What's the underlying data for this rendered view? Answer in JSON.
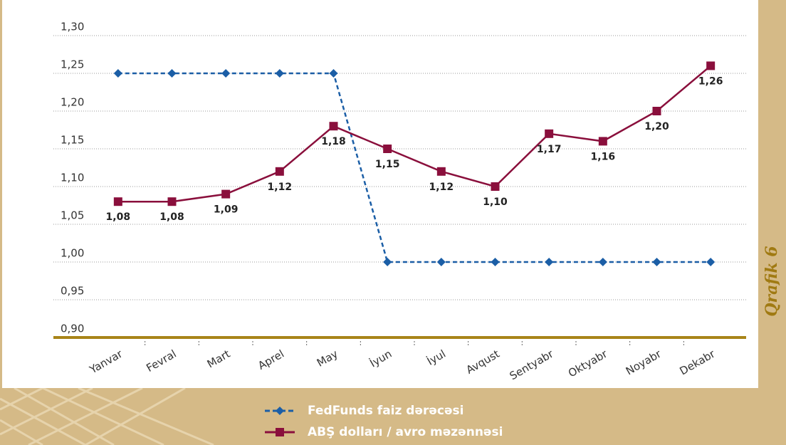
{
  "chart_data": {
    "type": "line",
    "figure_label": "Qrafik 6",
    "categories": [
      "Yanvar",
      "Fevral",
      "Mart",
      "Aprel",
      "May",
      "İyun",
      "İyul",
      "Avqust",
      "Sentyabr",
      "Oktyabr",
      "Noyabr",
      "Dekabr"
    ],
    "series": [
      {
        "name": "FedFunds faiz dərəcəsi",
        "color": "#1b5ea6",
        "line_style": "dashed",
        "marker": "diamond",
        "values": [
          1.25,
          1.25,
          1.25,
          1.25,
          1.25,
          1.0,
          1.0,
          1.0,
          1.0,
          1.0,
          1.0,
          1.0
        ]
      },
      {
        "name": "ABŞ dolları / avro məzənnəsi",
        "color": "#8a0f3c",
        "line_style": "solid",
        "marker": "square",
        "values": [
          1.08,
          1.08,
          1.09,
          1.12,
          1.18,
          1.15,
          1.12,
          1.1,
          1.17,
          1.16,
          1.2,
          1.26
        ],
        "value_labels": [
          "1,08",
          "1,08",
          "1,09",
          "1,12",
          "1,18",
          "1,15",
          "1,12",
          "1,10",
          "1,17",
          "1,16",
          "1,20",
          "1,26"
        ]
      }
    ],
    "ylim": [
      0.9,
      1.3
    ],
    "yticks": [
      {
        "value": 0.9,
        "label": "0,90"
      },
      {
        "value": 0.95,
        "label": "0,95"
      },
      {
        "value": 1.0,
        "label": "1,00"
      },
      {
        "value": 1.05,
        "label": "1,05"
      },
      {
        "value": 1.1,
        "label": "1,10"
      },
      {
        "value": 1.15,
        "label": "1,15"
      },
      {
        "value": 1.2,
        "label": "1,20"
      },
      {
        "value": 1.25,
        "label": "1,25"
      },
      {
        "value": 1.3,
        "label": "1,30"
      }
    ],
    "grid": true
  }
}
